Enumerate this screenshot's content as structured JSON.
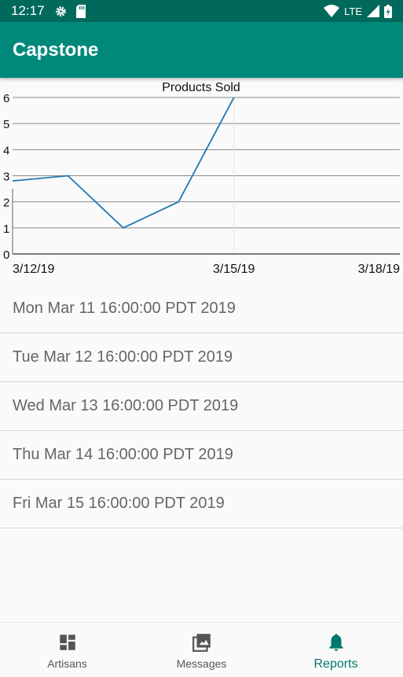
{
  "status_bar": {
    "time": "12:17",
    "network": "LTE"
  },
  "app_bar": {
    "title": "Capstone"
  },
  "chart_data": {
    "type": "line",
    "title": "Products Sold",
    "x": [
      "3/11/19",
      "3/12/19",
      "3/13/19",
      "3/14/19",
      "3/15/19"
    ],
    "x_ticks": [
      "3/12/19",
      "3/15/19",
      "3/18/19"
    ],
    "series": [
      {
        "values": [
          2.8,
          3,
          1,
          2,
          6
        ]
      }
    ],
    "ylim": [
      0,
      6
    ],
    "y_ticks": [
      "0",
      "1",
      "2",
      "3",
      "4",
      "5",
      "6"
    ],
    "grid": true,
    "line_color": "#1f77b4"
  },
  "list": {
    "items": [
      "Mon Mar 11 16:00:00 PDT 2019",
      "Tue Mar 12 16:00:00 PDT 2019",
      "Wed Mar 13 16:00:00 PDT 2019",
      "Thu Mar 14 16:00:00 PDT 2019",
      "Fri Mar 15 16:00:00 PDT 2019"
    ]
  },
  "bottom_nav": {
    "items": [
      {
        "label": "Artisans",
        "icon": "dashboard-icon"
      },
      {
        "label": "Messages",
        "icon": "photo-library-icon"
      },
      {
        "label": "Reports",
        "icon": "bell-icon"
      }
    ],
    "active_index": 2
  },
  "colors": {
    "status_bar": "#00695c",
    "app_bar": "#00897b",
    "accent": "#00796b"
  }
}
